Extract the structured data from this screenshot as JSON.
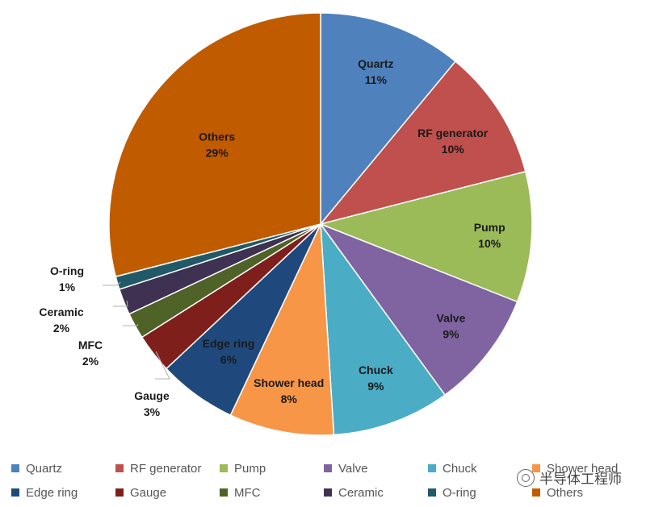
{
  "chart_data": {
    "type": "pie",
    "slices": [
      {
        "label": "Quartz",
        "value": 11,
        "pct_label": "11%",
        "color": "#4F81BD"
      },
      {
        "label": "RF generator",
        "value": 10,
        "pct_label": "10%",
        "color": "#C0504D"
      },
      {
        "label": "Pump",
        "value": 10,
        "pct_label": "10%",
        "color": "#9BBB59"
      },
      {
        "label": "Valve",
        "value": 9,
        "pct_label": "9%",
        "color": "#8064A2"
      },
      {
        "label": "Chuck",
        "value": 9,
        "pct_label": "9%",
        "color": "#4BACC6"
      },
      {
        "label": "Shower head",
        "value": 8,
        "pct_label": "8%",
        "color": "#F79646"
      },
      {
        "label": "Edge ring",
        "value": 6,
        "pct_label": "6%",
        "color": "#1F497D"
      },
      {
        "label": "Gauge",
        "value": 3,
        "pct_label": "3%",
        "color": "#7F1F1C"
      },
      {
        "label": "MFC",
        "value": 2,
        "pct_label": "2%",
        "color": "#4F6228"
      },
      {
        "label": "Ceramic",
        "value": 2,
        "pct_label": "2%",
        "color": "#3F3151"
      },
      {
        "label": "O-ring",
        "value": 1,
        "pct_label": "1%",
        "color": "#215968"
      },
      {
        "label": "Others",
        "value": 29,
        "pct_label": "29%",
        "color": "#C05B00"
      }
    ],
    "legend": [
      "Quartz",
      "RF generator",
      "Pump",
      "Valve",
      "Chuck",
      "Shower head",
      "Edge ring",
      "Gauge",
      "MFC",
      "Ceramic",
      "O-ring",
      "Others"
    ],
    "legend_position": "bottom"
  },
  "watermark": {
    "text": "半导体工程师",
    "icon": "wechat-icon"
  }
}
